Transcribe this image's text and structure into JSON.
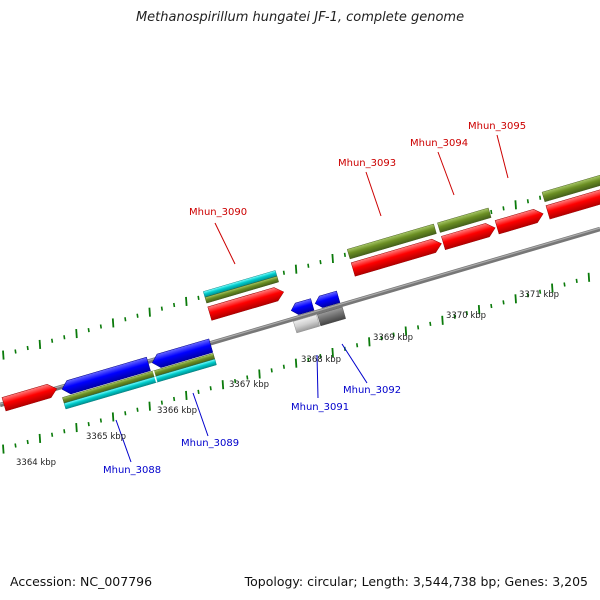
{
  "title": "Methanospirillum hungatei JF-1, complete genome",
  "footer": {
    "accession": "Accession: NC_007796",
    "topology": "Topology: circular; Length: 3,544,738 bp; Genes: 3,205"
  },
  "scale_labels": [
    {
      "id": "3364",
      "text": "3364 kbp"
    },
    {
      "id": "3365",
      "text": "3365 kbp"
    },
    {
      "id": "3366",
      "text": "3366 kbp"
    },
    {
      "id": "3367",
      "text": "3367 kbp"
    },
    {
      "id": "3368",
      "text": "3368 kbp"
    },
    {
      "id": "3369",
      "text": "3369 kbp"
    },
    {
      "id": "3370",
      "text": "3370 kbp"
    },
    {
      "id": "3371",
      "text": "3371 kbp"
    }
  ],
  "gene_labels": [
    {
      "id": "Mhun_3088",
      "text": "Mhun_3088",
      "strand": "reverse"
    },
    {
      "id": "Mhun_3089",
      "text": "Mhun_3089",
      "strand": "reverse"
    },
    {
      "id": "Mhun_3090",
      "text": "Mhun_3090",
      "strand": "forward"
    },
    {
      "id": "Mhun_3091",
      "text": "Mhun_3091",
      "strand": "reverse"
    },
    {
      "id": "Mhun_3092",
      "text": "Mhun_3092",
      "strand": "reverse"
    },
    {
      "id": "Mhun_3093",
      "text": "Mhun_3093",
      "strand": "forward"
    },
    {
      "id": "Mhun_3094",
      "text": "Mhun_3094",
      "strand": "forward"
    },
    {
      "id": "Mhun_3095",
      "text": "Mhun_3095",
      "strand": "forward"
    }
  ],
  "colors": {
    "forward_gene": "#ff0000",
    "reverse_gene": "#0000ff",
    "olive_feature": "#6b8e23",
    "cyan_feature": "#00cccc",
    "grey_feature": "#aaaaaa",
    "backbone": "#808080",
    "tick": "#0a7a0a",
    "forward_label": "#cc0000",
    "reverse_label": "#0000cc"
  }
}
